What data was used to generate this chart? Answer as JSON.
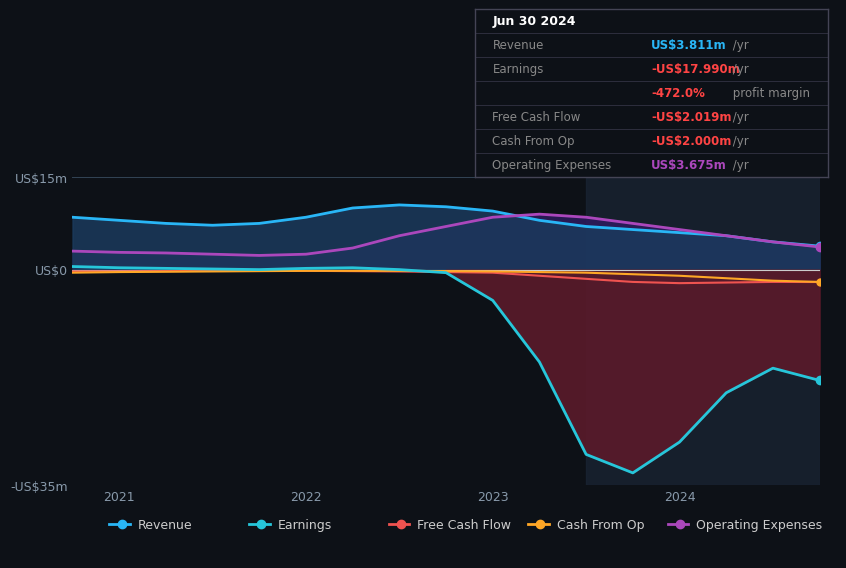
{
  "bg_color": "#0d1117",
  "plot_bg_color": "#0d1117",
  "ylim": [
    -35,
    15
  ],
  "xlim_start": 2020.75,
  "xlim_end": 2024.75,
  "yticks": [
    -35,
    0,
    15
  ],
  "ytick_labels": [
    "-US$35m",
    "US$0",
    "US$15m"
  ],
  "xtick_positions": [
    2021,
    2022,
    2023,
    2024
  ],
  "xtick_labels": [
    "2021",
    "2022",
    "2023",
    "2024"
  ],
  "revenue_color": "#29b6f6",
  "earnings_color": "#26c6da",
  "fcf_color": "#ef5350",
  "cashfromop_color": "#ffa726",
  "opex_color": "#ab47bc",
  "legend_items": [
    {
      "label": "Revenue",
      "color": "#29b6f6"
    },
    {
      "label": "Earnings",
      "color": "#26c6da"
    },
    {
      "label": "Free Cash Flow",
      "color": "#ef5350"
    },
    {
      "label": "Cash From Op",
      "color": "#ffa726"
    },
    {
      "label": "Operating Expenses",
      "color": "#ab47bc"
    }
  ],
  "highlight_x_start": 2023.5,
  "highlight_x_end": 2024.75,
  "revenue_x": [
    2020.75,
    2021.0,
    2021.25,
    2021.5,
    2021.75,
    2022.0,
    2022.25,
    2022.5,
    2022.75,
    2023.0,
    2023.25,
    2023.5,
    2023.75,
    2024.0,
    2024.25,
    2024.5,
    2024.75
  ],
  "revenue_y": [
    8.5,
    8.0,
    7.5,
    7.2,
    7.5,
    8.5,
    10.0,
    10.5,
    10.2,
    9.5,
    8.0,
    7.0,
    6.5,
    6.0,
    5.5,
    4.5,
    3.811
  ],
  "earnings_x": [
    2020.75,
    2021.0,
    2021.25,
    2021.5,
    2021.75,
    2022.0,
    2022.25,
    2022.5,
    2022.75,
    2023.0,
    2023.25,
    2023.5,
    2023.75,
    2024.0,
    2024.25,
    2024.5,
    2024.75
  ],
  "earnings_y": [
    0.5,
    0.3,
    0.2,
    0.1,
    0.0,
    0.2,
    0.3,
    0.0,
    -0.5,
    -5.0,
    -15.0,
    -30.0,
    -33.0,
    -28.0,
    -20.0,
    -16.0,
    -17.99
  ],
  "fcf_x": [
    2020.75,
    2021.0,
    2021.5,
    2022.0,
    2022.5,
    2023.0,
    2023.25,
    2023.5,
    2023.75,
    2024.0,
    2024.25,
    2024.5,
    2024.75
  ],
  "fcf_y": [
    -0.3,
    -0.3,
    -0.2,
    -0.2,
    -0.3,
    -0.5,
    -1.0,
    -1.5,
    -2.0,
    -2.2,
    -2.1,
    -2.0,
    -2.019
  ],
  "cashfromop_x": [
    2020.75,
    2021.0,
    2021.5,
    2022.0,
    2022.5,
    2023.0,
    2023.5,
    2024.0,
    2024.5,
    2024.75
  ],
  "cashfromop_y": [
    -0.5,
    -0.4,
    -0.3,
    -0.2,
    -0.2,
    -0.3,
    -0.5,
    -1.0,
    -1.8,
    -2.0
  ],
  "opex_x": [
    2020.75,
    2021.0,
    2021.25,
    2021.5,
    2021.75,
    2022.0,
    2022.25,
    2022.5,
    2022.75,
    2023.0,
    2023.25,
    2023.5,
    2023.75,
    2024.0,
    2024.25,
    2024.5,
    2024.75
  ],
  "opex_y": [
    3.0,
    2.8,
    2.7,
    2.5,
    2.3,
    2.5,
    3.5,
    5.5,
    7.0,
    8.5,
    9.0,
    8.5,
    7.5,
    6.5,
    5.5,
    4.5,
    3.675
  ],
  "table_rows": [
    {
      "label": "Jun 30 2024",
      "value": "",
      "suffix": "",
      "label_color": "#ffffff",
      "value_color": "",
      "is_title": true
    },
    {
      "label": "Revenue",
      "value": "US$3.811m",
      "suffix": " /yr",
      "label_color": "#888888",
      "value_color": "#29b6f6",
      "is_title": false
    },
    {
      "label": "Earnings",
      "value": "-US$17.990m",
      "suffix": " /yr",
      "label_color": "#888888",
      "value_color": "#ff4444",
      "is_title": false
    },
    {
      "label": "",
      "value": "-472.0%",
      "suffix": " profit margin",
      "label_color": "",
      "value_color": "#ff4444",
      "is_title": false
    },
    {
      "label": "Free Cash Flow",
      "value": "-US$2.019m",
      "suffix": " /yr",
      "label_color": "#888888",
      "value_color": "#ff4444",
      "is_title": false
    },
    {
      "label": "Cash From Op",
      "value": "-US$2.000m",
      "suffix": " /yr",
      "label_color": "#888888",
      "value_color": "#ff4444",
      "is_title": false
    },
    {
      "label": "Operating Expenses",
      "value": "US$3.675m",
      "suffix": " /yr",
      "label_color": "#888888",
      "value_color": "#ab47bc",
      "is_title": false
    }
  ]
}
